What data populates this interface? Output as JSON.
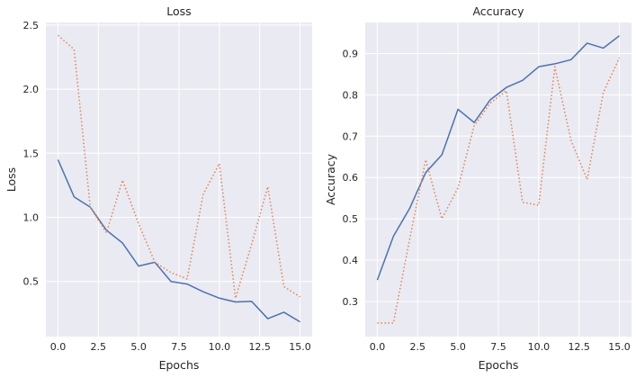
{
  "chart_data": [
    {
      "type": "line",
      "title": "Loss",
      "xlabel": "Epochs",
      "ylabel": "Loss",
      "xlim": [
        -0.75,
        15.75
      ],
      "ylim": [
        0.07,
        2.52
      ],
      "xticks": [
        0,
        2.5,
        5,
        7.5,
        10,
        12.5,
        15
      ],
      "xtick_labels": [
        "0.0",
        "2.5",
        "5.0",
        "7.5",
        "10.0",
        "12.5",
        "15.0"
      ],
      "yticks": [
        0.5,
        1.0,
        1.5,
        2.0,
        2.5
      ],
      "ytick_labels": [
        "0.5",
        "1.0",
        "1.5",
        "2.0",
        "2.5"
      ],
      "grid": true,
      "x": [
        0,
        1,
        2,
        3,
        4,
        5,
        6,
        7,
        8,
        9,
        10,
        11,
        12,
        13,
        14,
        15
      ],
      "series": [
        {
          "color": "#4c72b0",
          "style": "solid",
          "values": [
            1.45,
            1.16,
            1.08,
            0.9,
            0.8,
            0.62,
            0.65,
            0.5,
            0.48,
            0.42,
            0.37,
            0.34,
            0.345,
            0.21,
            0.26,
            0.185
          ]
        },
        {
          "color": "#dd8452",
          "style": "dotted",
          "values": [
            2.42,
            2.31,
            1.08,
            0.88,
            1.29,
            0.95,
            0.65,
            0.57,
            0.52,
            1.18,
            1.42,
            0.37,
            0.79,
            1.24,
            0.46,
            0.38
          ]
        }
      ]
    },
    {
      "type": "line",
      "title": "Accuracy",
      "xlabel": "Epochs",
      "ylabel": "Accuracy",
      "xlim": [
        -0.75,
        15.75
      ],
      "ylim": [
        0.215,
        0.975
      ],
      "xticks": [
        0,
        2.5,
        5,
        7.5,
        10,
        12.5,
        15
      ],
      "xtick_labels": [
        "0.0",
        "2.5",
        "5.0",
        "7.5",
        "10.0",
        "12.5",
        "15.0"
      ],
      "yticks": [
        0.3,
        0.4,
        0.5,
        0.6,
        0.7,
        0.8,
        0.9
      ],
      "ytick_labels": [
        "0.3",
        "0.4",
        "0.5",
        "0.6",
        "0.7",
        "0.8",
        "0.9"
      ],
      "grid": true,
      "x": [
        0,
        1,
        2,
        3,
        4,
        5,
        6,
        7,
        8,
        9,
        10,
        11,
        12,
        13,
        14,
        15
      ],
      "series": [
        {
          "color": "#4c72b0",
          "style": "solid",
          "values": [
            0.352,
            0.458,
            0.525,
            0.612,
            0.655,
            0.765,
            0.733,
            0.788,
            0.818,
            0.835,
            0.868,
            0.875,
            0.885,
            0.925,
            0.913,
            0.943
          ]
        },
        {
          "color": "#dd8452",
          "style": "dotted",
          "values": [
            0.248,
            0.248,
            0.45,
            0.643,
            0.5,
            0.575,
            0.725,
            0.78,
            0.81,
            0.54,
            0.533,
            0.868,
            0.69,
            0.595,
            0.805,
            0.89
          ]
        }
      ]
    }
  ]
}
